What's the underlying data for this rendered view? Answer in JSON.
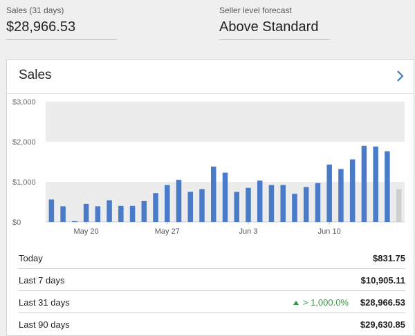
{
  "summary": {
    "sales_label": "Sales (31 days)",
    "sales_value": "$28,966.53",
    "forecast_label": "Seller level forecast",
    "forecast_value": "Above Standard"
  },
  "card": {
    "title": "Sales",
    "chevron_icon": "chevron-right-icon"
  },
  "chart_data": {
    "type": "bar",
    "y_ticks": [
      "$3,000",
      "$2,000",
      "$1,000",
      "$0"
    ],
    "ylim": [
      0,
      3000
    ],
    "x_tick_labels": [
      "May 20",
      "May 27",
      "Jun 3",
      "Jun 10"
    ],
    "band_upper_min": 2000,
    "band_lower_max": 1000,
    "values": [
      560,
      390,
      20,
      450,
      390,
      540,
      400,
      400,
      520,
      720,
      920,
      1050,
      750,
      820,
      1380,
      1230,
      750,
      850,
      1030,
      920,
      920,
      700,
      870,
      970,
      1430,
      1320,
      1560,
      1900,
      1880,
      1760,
      820
    ],
    "highlight_last": true,
    "bar_color": "#4a7bc8",
    "last_bar_color": "#cfcfcf"
  },
  "stats": [
    {
      "name": "Today",
      "amount": "$831.75",
      "change": ""
    },
    {
      "name": "Last 7 days",
      "amount": "$10,905.11",
      "change": ""
    },
    {
      "name": "Last 31 days",
      "amount": "$28,966.53",
      "change": "> 1,000.0%"
    },
    {
      "name": "Last 90 days",
      "amount": "$29,630.85",
      "change": ""
    }
  ]
}
